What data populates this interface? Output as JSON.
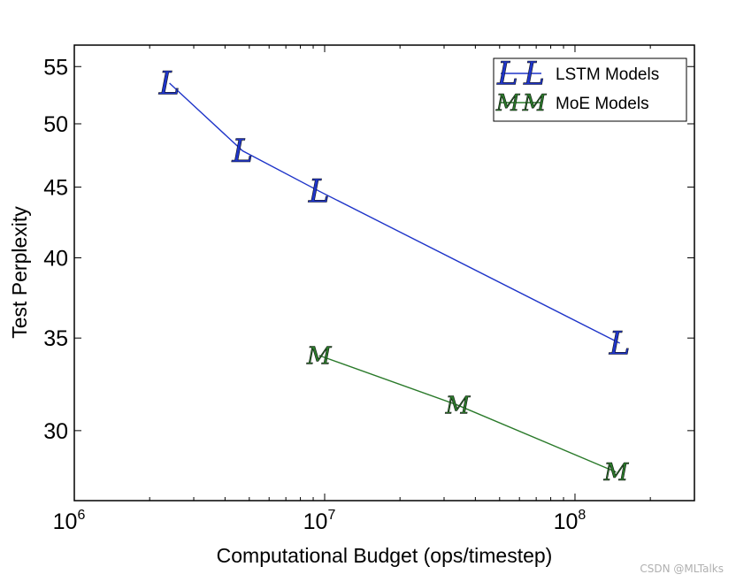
{
  "chart_data": {
    "type": "line",
    "xscale": "log",
    "yscale": "log",
    "xlabel": "Computational Budget (ops/timestep)",
    "ylabel": "Test Perplexity",
    "xlim": [
      1000000,
      300000000
    ],
    "ylim": [
      26.7,
      57
    ],
    "x_ticks": [
      {
        "value": 1000000,
        "base": "10",
        "exp": "6"
      },
      {
        "value": 10000000,
        "base": "10",
        "exp": "7"
      },
      {
        "value": 100000000,
        "base": "10",
        "exp": "8"
      }
    ],
    "y_ticks": [
      30,
      35,
      40,
      45,
      50,
      55
    ],
    "series": [
      {
        "name": "LSTM Models",
        "marker": "L",
        "color": "#1f35c9",
        "x": [
          2400000,
          4700000,
          9500000,
          151000000
        ],
        "y": [
          53.5,
          47.8,
          44.7,
          34.7
        ]
      },
      {
        "name": "MoE Models",
        "marker": "M",
        "color": "#2a7a2a",
        "x": [
          9500000,
          34000000,
          146000000
        ],
        "y": [
          34.0,
          31.3,
          28.0
        ]
      }
    ],
    "legend_position": "top-right"
  },
  "watermark": "CSDN @MLTalks"
}
